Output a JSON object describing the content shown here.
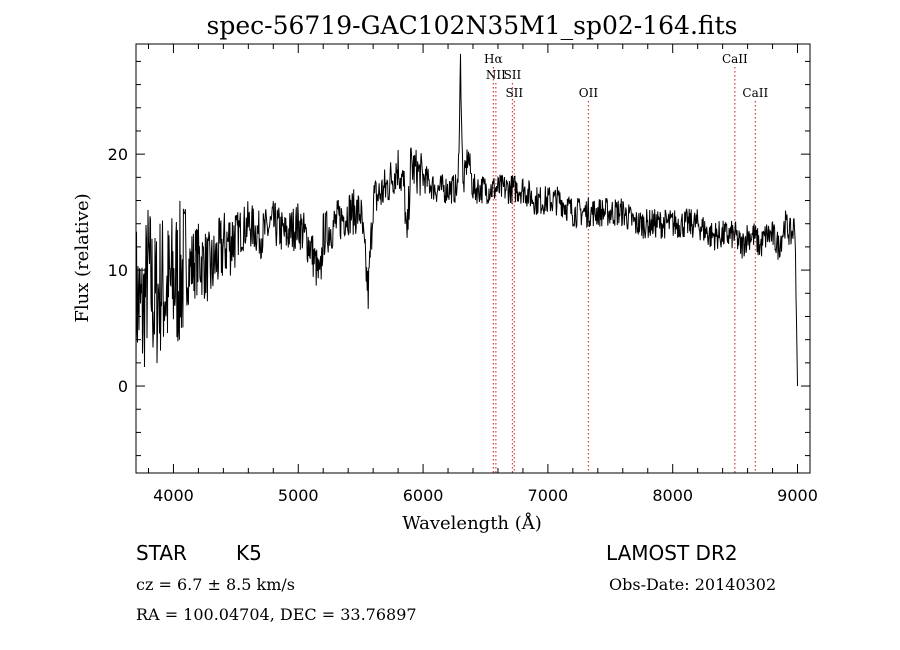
{
  "chart_data": {
    "type": "line",
    "title": "spec-56719-GAC102N35M1_sp02-164.fits",
    "xlabel": "Wavelength (Å)",
    "ylabel": "Flux (relative)",
    "xlim": [
      3700,
      9100
    ],
    "ylim": [
      -7.5,
      29.5
    ],
    "x_ticks": [
      4000,
      5000,
      6000,
      7000,
      8000,
      9000
    ],
    "y_ticks": [
      0,
      10,
      20
    ],
    "grid": false,
    "series": [
      {
        "x": [
          3700,
          3750,
          3800,
          3850,
          3900,
          3950,
          4000,
          4100,
          4200,
          4300,
          4400,
          4500,
          4600,
          4700,
          4800,
          4900,
          5000,
          5100,
          5175,
          5200,
          5300,
          5400,
          5500,
          5560,
          5600,
          5700,
          5800,
          5850,
          5870,
          5900,
          6000,
          6100,
          6200,
          6280,
          6300,
          6320,
          6360,
          6400,
          6500,
          6600,
          6700,
          6800,
          6900,
          7000,
          7100,
          7200,
          7300,
          7400,
          7500,
          7600,
          7700,
          7800,
          7900,
          8000,
          8100,
          8200,
          8300,
          8400,
          8500,
          8550,
          8600,
          8650,
          8700,
          8750,
          8800,
          8850,
          8900,
          8950,
          8980,
          9000
        ],
        "y": [
          8,
          6,
          10,
          7,
          9,
          8,
          9,
          10,
          11,
          10,
          12,
          13,
          14,
          13,
          14,
          13,
          14,
          12,
          9,
          13,
          14,
          15,
          15,
          8,
          16,
          17,
          19,
          17,
          12,
          19,
          18,
          17,
          17,
          17,
          28,
          17,
          20,
          17,
          17,
          17,
          17,
          17,
          16,
          16,
          16,
          15,
          15,
          15,
          15,
          15,
          14,
          14,
          14,
          14,
          14,
          14,
          13,
          13,
          13,
          12,
          13,
          13,
          12,
          13,
          13,
          12,
          14,
          13,
          14,
          0
        ]
      }
    ],
    "lines": [
      {
        "label": "Hα",
        "x": 6563,
        "label_row": 1
      },
      {
        "label": "NII",
        "x": 6583,
        "label_row": 2
      },
      {
        "label": "SII",
        "x": 6716,
        "label_row": 2
      },
      {
        "label": "SII",
        "x": 6731,
        "label_row": 3
      },
      {
        "label": "OII",
        "x": 7325,
        "label_row": 3
      },
      {
        "label": "CaII",
        "x": 8498,
        "label_row": 1
      },
      {
        "label": "CaII",
        "x": 8662,
        "label_row": 3
      }
    ]
  },
  "info": {
    "object_type": "STAR",
    "subclass": "K5",
    "survey": "LAMOST DR2",
    "cz": "cz = 6.7 ± 8.5 km/s",
    "obs_date": "Obs-Date: 20140302",
    "coords": "RA = 100.04704, DEC =  33.76897"
  },
  "colors": {
    "spectrum": "#000000",
    "line_markers": "#d04040"
  }
}
